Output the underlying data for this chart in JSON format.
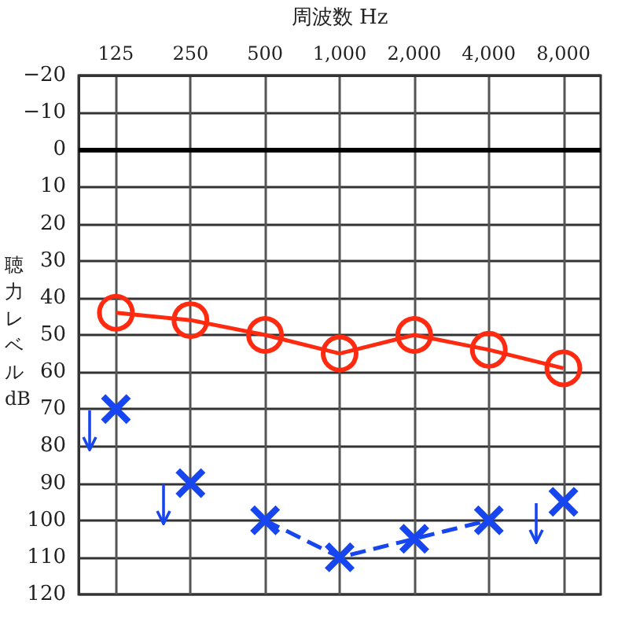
{
  "chart_data": {
    "type": "line",
    "xlabel": "周波数 Hz",
    "ylabel": "聴力レベル dB",
    "categories": [
      "125",
      "250",
      "500",
      "1,000",
      "2,000",
      "4,000",
      "8,000"
    ],
    "ylim": [
      120,
      -20
    ],
    "yticks": [
      {
        "value": -20,
        "label": "−20"
      },
      {
        "value": -10,
        "label": "−10"
      },
      0,
      10,
      20,
      30,
      40,
      50,
      60,
      70,
      80,
      90,
      100,
      110,
      120
    ],
    "grid": true,
    "ref_lines": [
      {
        "axis": "y",
        "value": 0,
        "color": "#000000"
      }
    ],
    "series": [
      {
        "type": "line",
        "color": "#ff2a10",
        "marker": "circle",
        "line_style": "solid",
        "values": [
          44,
          46,
          50,
          55,
          50,
          54,
          59
        ]
      },
      {
        "type": "line",
        "color": "#1746f0",
        "marker": "cross",
        "line_style": "dashed",
        "values": [
          null,
          null,
          100,
          110,
          105,
          100,
          null
        ]
      },
      {
        "type": "scatter",
        "color": "#1746f0",
        "marker": "cross",
        "values": [
          70,
          90,
          null,
          null,
          null,
          null,
          95
        ]
      }
    ]
  }
}
